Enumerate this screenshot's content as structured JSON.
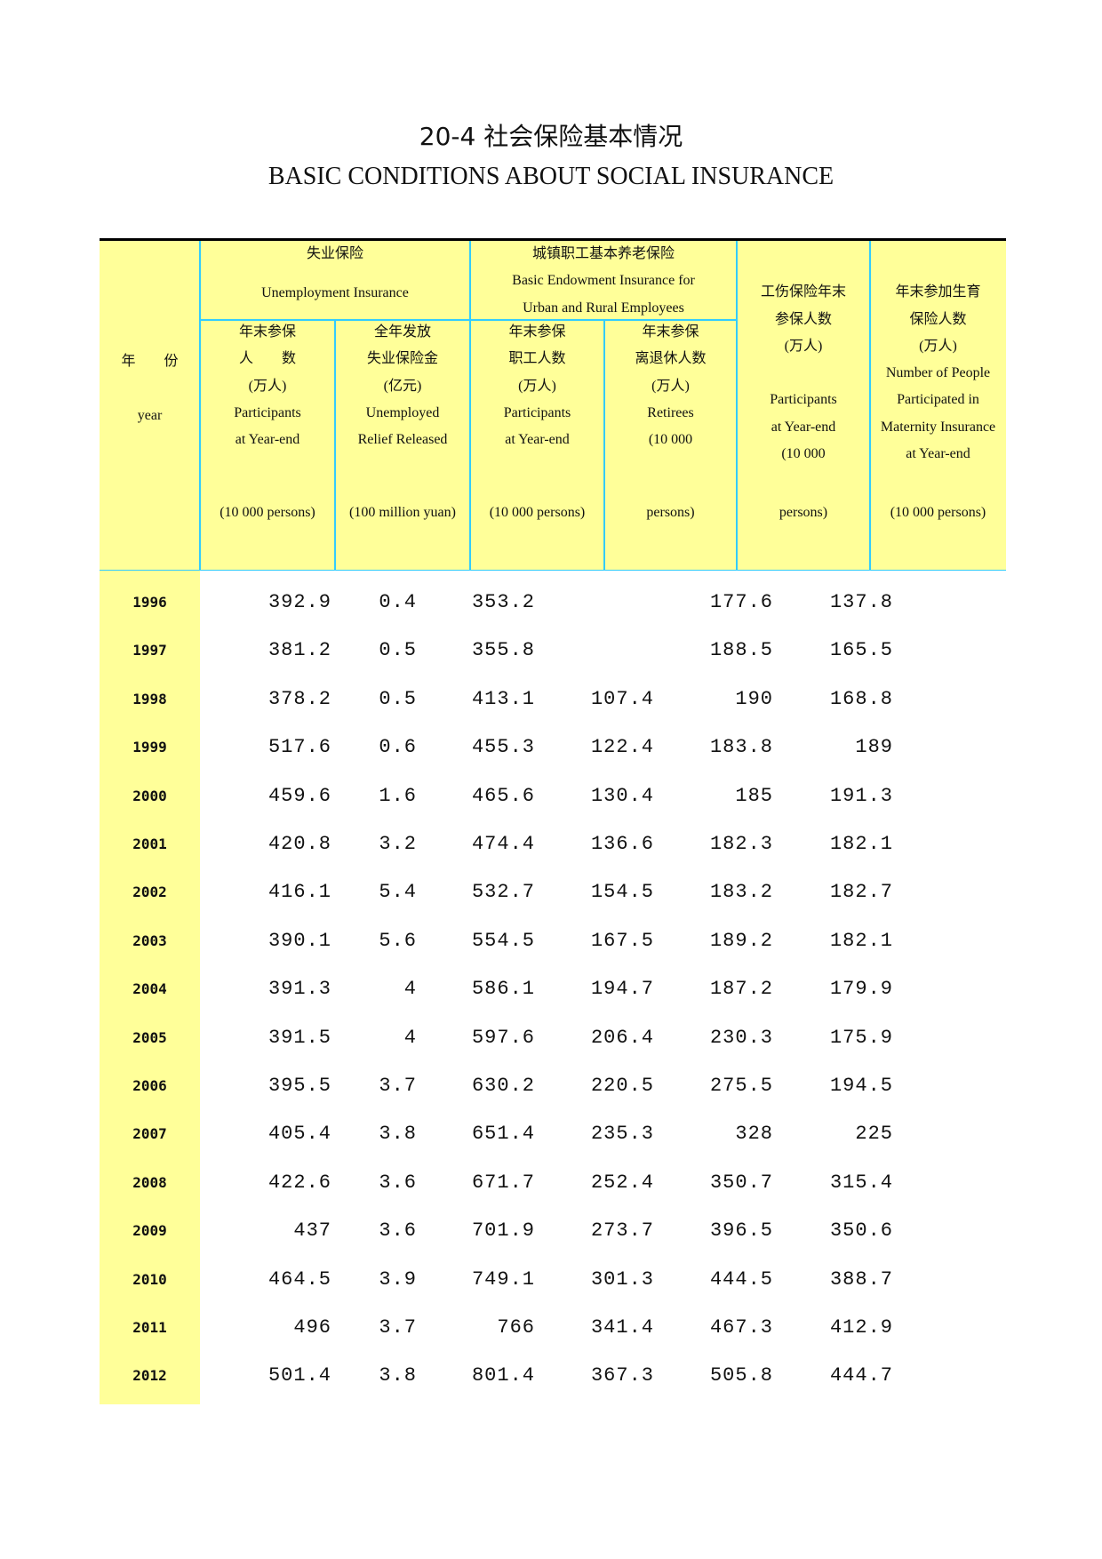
{
  "title": {
    "cn": "20-4  社会保险基本情况",
    "en": "BASIC CONDITIONS ABOUT SOCIAL INSURANCE"
  },
  "header": {
    "year": {
      "cn": "年　　份",
      "en": "year"
    },
    "unemployment_group": {
      "cn": "失业保险",
      "en": "Unemployment Insurance"
    },
    "endowment_group": {
      "lines": [
        "城镇职工基本养老保险",
        "Basic Endowment Insurance for",
        "Urban and Rural Employees"
      ]
    },
    "columns": [
      {
        "lines": [
          "年末参保",
          "人　　数",
          "(万人)",
          "Participants",
          "at  Year-end"
        ],
        "unit": "(10 000 persons)"
      },
      {
        "lines": [
          "全年发放",
          "失业保险金",
          "(亿元)",
          "Unemployed",
          "Relief Released"
        ],
        "unit": "(100 million yuan)"
      },
      {
        "lines": [
          "年末参保",
          "职工人数",
          "(万人)",
          "Participants",
          "at Year-end"
        ],
        "unit": "(10 000 persons)"
      },
      {
        "lines": [
          "年末参保",
          "离退休人数",
          "(万人)",
          "Retirees",
          "(10 000"
        ],
        "unit": "persons)"
      },
      {
        "lines": [
          "",
          "工伤保险年末",
          "参保人数",
          "(万人)",
          "",
          "Participants",
          "at Year-end",
          "(10 000"
        ],
        "unit": "persons)"
      },
      {
        "lines": [
          "",
          "年末参加生育",
          "保险人数",
          "(万人)",
          "Number of People",
          "Participated in",
          "Maternity Insurance",
          "at Year-end"
        ],
        "unit": "(10 000 persons)"
      }
    ]
  },
  "rows": [
    {
      "year": "1996",
      "values": [
        "392.9",
        "0.4",
        "353.2",
        "",
        "177.6",
        "137.8"
      ]
    },
    {
      "year": "1997",
      "values": [
        "381.2",
        "0.5",
        "355.8",
        "",
        "188.5",
        "165.5"
      ]
    },
    {
      "year": "1998",
      "values": [
        "378.2",
        "0.5",
        "413.1",
        "107.4",
        "190",
        "168.8"
      ]
    },
    {
      "year": "1999",
      "values": [
        "517.6",
        "0.6",
        "455.3",
        "122.4",
        "183.8",
        "189"
      ]
    },
    {
      "year": "2000",
      "values": [
        "459.6",
        "1.6",
        "465.6",
        "130.4",
        "185",
        "191.3"
      ]
    },
    {
      "year": "2001",
      "values": [
        "420.8",
        "3.2",
        "474.4",
        "136.6",
        "182.3",
        "182.1"
      ]
    },
    {
      "year": "2002",
      "values": [
        "416.1",
        "5.4",
        "532.7",
        "154.5",
        "183.2",
        "182.7"
      ]
    },
    {
      "year": "2003",
      "values": [
        "390.1",
        "5.6",
        "554.5",
        "167.5",
        "189.2",
        "182.1"
      ]
    },
    {
      "year": "2004",
      "values": [
        "391.3",
        "4",
        "586.1",
        "194.7",
        "187.2",
        "179.9"
      ]
    },
    {
      "year": "2005",
      "values": [
        "391.5",
        "4",
        "597.6",
        "206.4",
        "230.3",
        "175.9"
      ]
    },
    {
      "year": "2006",
      "values": [
        "395.5",
        "3.7",
        "630.2",
        "220.5",
        "275.5",
        "194.5"
      ]
    },
    {
      "year": "2007",
      "values": [
        "405.4",
        "3.8",
        "651.4",
        "235.3",
        "328",
        "225"
      ]
    },
    {
      "year": "2008",
      "values": [
        "422.6",
        "3.6",
        "671.7",
        "252.4",
        "350.7",
        "315.4"
      ]
    },
    {
      "year": "2009",
      "values": [
        "437",
        "3.6",
        "701.9",
        "273.7",
        "396.5",
        "350.6"
      ]
    },
    {
      "year": "2010",
      "values": [
        "464.5",
        "3.9",
        "749.1",
        "301.3",
        "444.5",
        "388.7"
      ]
    },
    {
      "year": "2011",
      "values": [
        "496",
        "3.7",
        "766",
        "341.4",
        "467.3",
        "412.9"
      ]
    },
    {
      "year": "2012",
      "values": [
        "501.4",
        "3.8",
        "801.4",
        "367.3",
        "505.8",
        "444.7"
      ]
    }
  ],
  "colors": {
    "header_bg": "#ffff99",
    "rule": "#33ccff"
  }
}
